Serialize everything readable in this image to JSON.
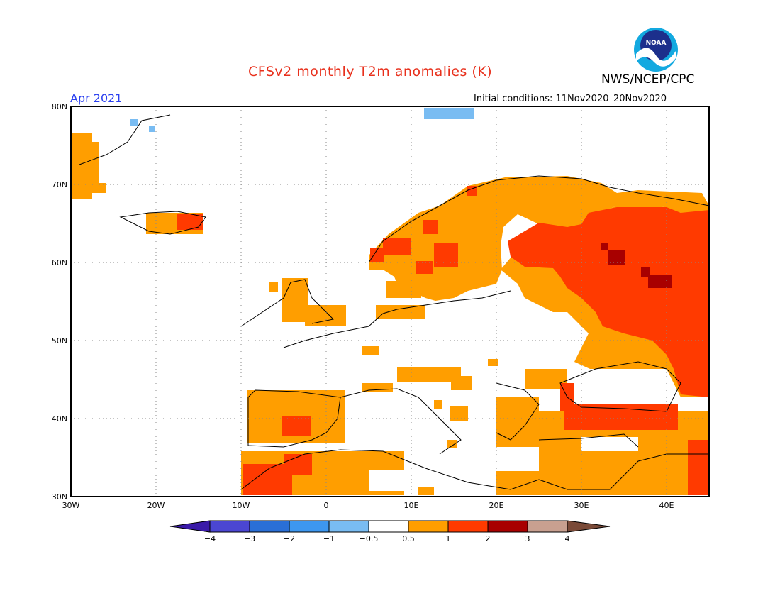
{
  "header": {
    "title": "CFSv2 monthly T2m anomalies (K)",
    "organization": "NWS/NCEP/CPC",
    "logo_text": "NOAA",
    "valid_month": "Apr 2021",
    "initial_conditions": "Initial conditions: 11Nov2020–20Nov2020"
  },
  "map": {
    "lat_labels": [
      "80N",
      "70N",
      "60N",
      "50N",
      "40N",
      "30N"
    ],
    "lon_labels": [
      "30W",
      "20W",
      "10W",
      "0",
      "10E",
      "20E",
      "30E",
      "40E"
    ],
    "extent": {
      "lon": [
        -30,
        45
      ],
      "lat": [
        30,
        80
      ]
    },
    "gridlines": "dotted"
  },
  "colorbar": {
    "tick_labels": [
      "−4",
      "−3",
      "−2",
      "−1",
      "−0.5",
      "0.5",
      "1",
      "2",
      "3",
      "4"
    ],
    "colors": [
      "#3a1aa8",
      "#4b46d2",
      "#2a6fd6",
      "#3d97f0",
      "#79bcf2",
      "#ffffff",
      "#ff9e00",
      "#ff3a00",
      "#a80000",
      "#c8a090",
      "#7a4a38"
    ]
  }
}
